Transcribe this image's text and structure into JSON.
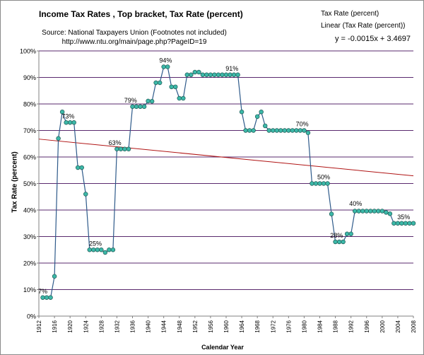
{
  "chart_data": {
    "type": "line",
    "title": "Income Tax Rates ,  Top bracket,  Tax Rate (percent)",
    "source_line1": "Source: National Taxpayers Union (Footnotes not included)",
    "source_line2": "http://www.ntu.org/main/page.php?PageID=19",
    "xlabel": "Calendar Year",
    "ylabel": "Tax Rate (percent)",
    "xlim": [
      1912,
      2008
    ],
    "ylim": [
      0,
      100
    ],
    "x_ticks": [
      "1912",
      "1916",
      "1920",
      "1924",
      "1928",
      "1932",
      "1936",
      "1940",
      "1944",
      "1948",
      "1952",
      "1956",
      "1960",
      "1964",
      "1968",
      "1972",
      "1976",
      "1980",
      "1984",
      "1988",
      "1992",
      "1996",
      "2000",
      "2004",
      "2008"
    ],
    "y_ticks": [
      "0%",
      "10%",
      "20%",
      "30%",
      "40%",
      "50%",
      "60%",
      "70%",
      "80%",
      "90%",
      "100%"
    ],
    "grid": true,
    "legend_position": "top-right",
    "series": [
      {
        "name": "Tax Rate (percent)",
        "color": "#2e5a8a",
        "marker_color": "#3cb8a8",
        "x": [
          1913,
          1914,
          1915,
          1916,
          1917,
          1918,
          1919,
          1920,
          1921,
          1922,
          1923,
          1924,
          1925,
          1926,
          1927,
          1928,
          1929,
          1930,
          1931,
          1932,
          1933,
          1934,
          1935,
          1936,
          1937,
          1938,
          1939,
          1940,
          1941,
          1942,
          1943,
          1944,
          1945,
          1946,
          1947,
          1948,
          1949,
          1950,
          1951,
          1952,
          1953,
          1954,
          1955,
          1956,
          1957,
          1958,
          1959,
          1960,
          1961,
          1962,
          1963,
          1964,
          1965,
          1966,
          1967,
          1968,
          1969,
          1970,
          1971,
          1972,
          1973,
          1974,
          1975,
          1976,
          1977,
          1978,
          1979,
          1980,
          1981,
          1982,
          1983,
          1984,
          1985,
          1986,
          1987,
          1988,
          1989,
          1990,
          1991,
          1992,
          1993,
          1994,
          1995,
          1996,
          1997,
          1998,
          1999,
          2000,
          2001,
          2002,
          2003,
          2004,
          2005,
          2006,
          2007,
          2008
        ],
        "values": [
          7,
          7,
          7,
          15,
          67,
          77,
          73,
          73,
          73,
          56,
          56,
          46,
          25,
          25,
          25,
          25,
          24,
          25,
          25,
          63,
          63,
          63,
          63,
          79,
          79,
          79,
          79,
          81.1,
          81,
          88,
          88,
          94,
          94,
          86.45,
          86.45,
          82.13,
          82.13,
          91,
          91,
          92,
          92,
          91,
          91,
          91,
          91,
          91,
          91,
          91,
          91,
          91,
          91,
          77,
          70,
          70,
          70,
          75.25,
          77,
          71.75,
          70,
          70,
          70,
          70,
          70,
          70,
          70,
          70,
          70,
          70,
          69.13,
          50,
          50,
          50,
          50,
          50,
          38.5,
          28,
          28,
          28,
          31,
          31,
          39.6,
          39.6,
          39.6,
          39.6,
          39.6,
          39.6,
          39.6,
          39.6,
          39.1,
          38.6,
          35,
          35,
          35,
          35,
          35,
          35
        ]
      },
      {
        "name": "Linear (Tax Rate (percent))",
        "color": "#b01414",
        "type": "trendline",
        "x": [
          1912,
          2008
        ],
        "values": [
          66.75,
          52.9
        ]
      }
    ],
    "annotations": [
      {
        "text": "7%",
        "x": 1913,
        "y": 7
      },
      {
        "text": "73%",
        "x": 1919.5,
        "y": 73
      },
      {
        "text": "25%",
        "x": 1926.5,
        "y": 25
      },
      {
        "text": "63%",
        "x": 1931.5,
        "y": 63
      },
      {
        "text": "79%",
        "x": 1935.5,
        "y": 79
      },
      {
        "text": "94%",
        "x": 1944.5,
        "y": 94
      },
      {
        "text": "91%",
        "x": 1961.5,
        "y": 91
      },
      {
        "text": "70%",
        "x": 1979.5,
        "y": 70
      },
      {
        "text": "50%",
        "x": 1985,
        "y": 50
      },
      {
        "text": "28%",
        "x": 1988.3,
        "y": 28
      },
      {
        "text": "40%",
        "x": 1993.2,
        "y": 40
      },
      {
        "text": "35%",
        "x": 2005.5,
        "y": 35
      }
    ],
    "trendline_equation": "y = -0.0015x + 3.4697"
  }
}
